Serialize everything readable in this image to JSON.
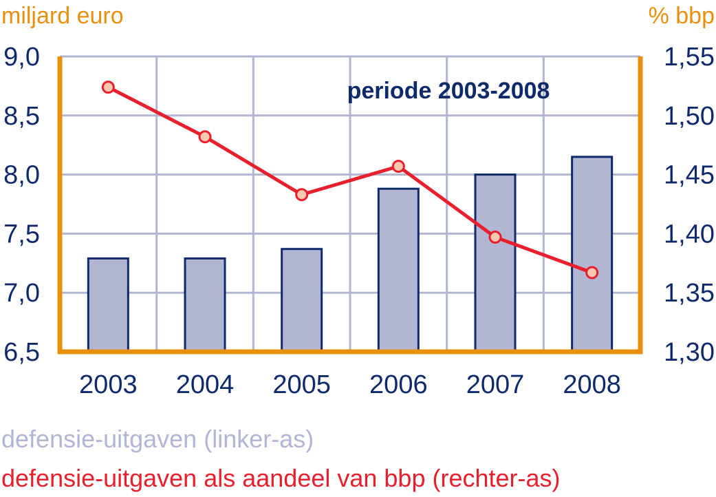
{
  "chart_data": {
    "type": "bar+line",
    "title": "periode 2003-2008",
    "categories": [
      "2003",
      "2004",
      "2005",
      "2006",
      "2007",
      "2008"
    ],
    "y_left": {
      "label": "miljard euro",
      "range": [
        6.5,
        9.0
      ],
      "ticks": [
        "6,5",
        "7,0",
        "7,5",
        "8,0",
        "8,5",
        "9,0"
      ]
    },
    "y_right": {
      "label": "% bbp",
      "range": [
        1.3,
        1.55
      ],
      "ticks": [
        "1,30",
        "1,35",
        "1,40",
        "1,45",
        "1,50",
        "1,55"
      ]
    },
    "series": [
      {
        "name": "defensie-uitgaven (linker-as)",
        "type": "bar",
        "axis": "left",
        "values": [
          7.29,
          7.29,
          7.37,
          7.88,
          8.0,
          8.15
        ]
      },
      {
        "name": "defensie-uitgaven als aandeel van bbp (rechter-as)",
        "type": "line",
        "axis": "right",
        "values": [
          1.524,
          1.482,
          1.433,
          1.457,
          1.397,
          1.367
        ]
      }
    ],
    "grid": true,
    "legend": "bottom-left",
    "colors": {
      "bar_fill": "#b3b6d3",
      "bar_stroke": "#0f2a6b",
      "line": "#e8202e",
      "marker_fill": "#f8c9b0",
      "axis": "#e8900c",
      "grid": "#b3b6d3",
      "text": "#0f2a6b",
      "axis_label": "#e8900c"
    }
  }
}
